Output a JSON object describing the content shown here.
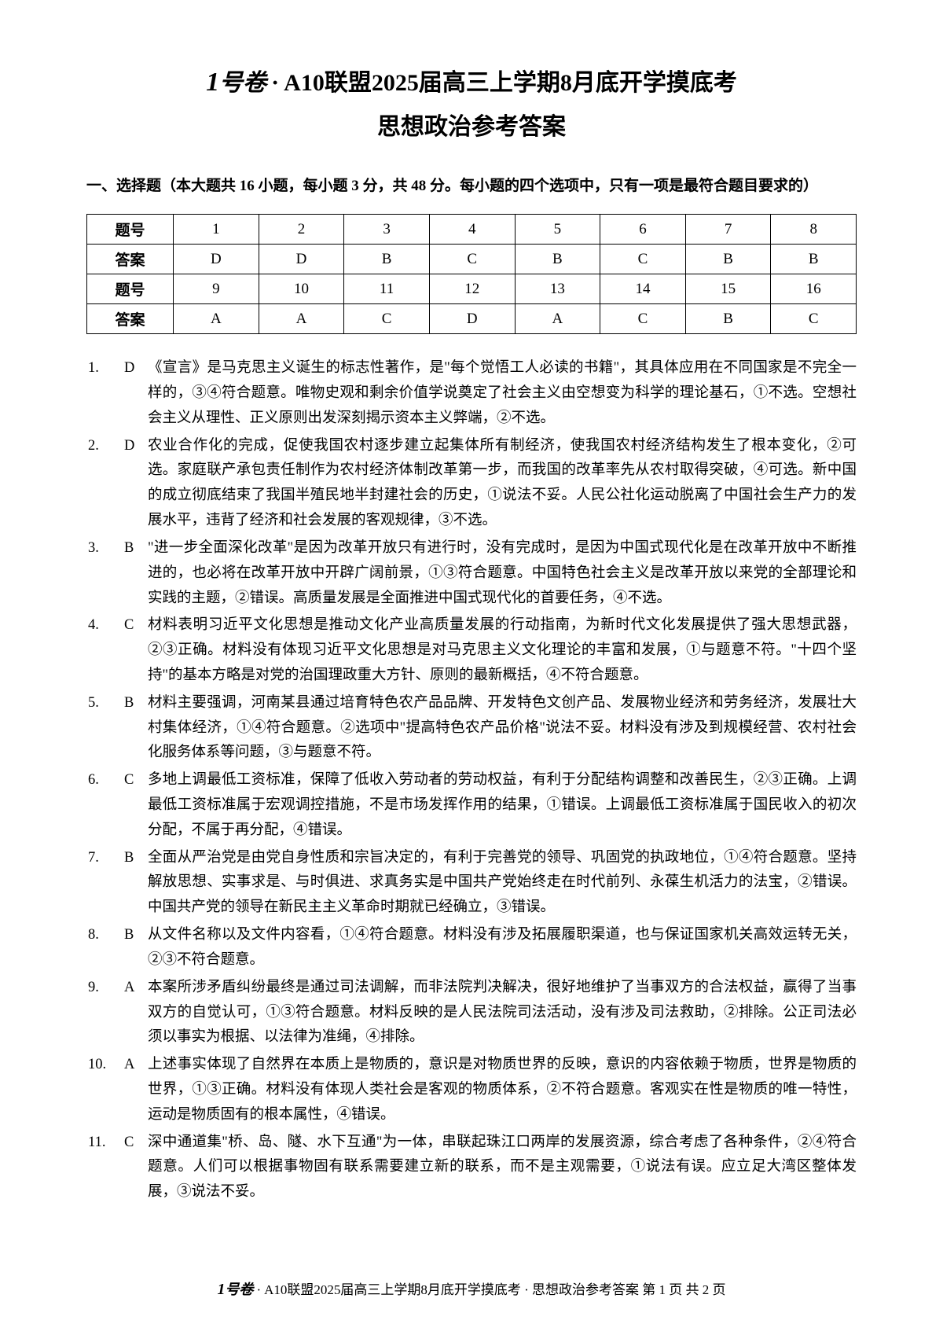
{
  "title": {
    "logo_num": "1",
    "logo_text": "号卷",
    "separator": "·",
    "main": "A10联盟2025届高三上学期8月底开学摸底考",
    "sub": "思想政治参考答案"
  },
  "section1_heading": "一、选择题（本大题共 16 小题，每小题 3 分，共 48 分。每小题的四个选项中，只有一项是最符合题目要求的）",
  "answer_table": {
    "row_label_q": "题号",
    "row_label_a": "答案",
    "rows": [
      {
        "nums": [
          "1",
          "2",
          "3",
          "4",
          "5",
          "6",
          "7",
          "8"
        ],
        "ans": [
          "D",
          "D",
          "B",
          "C",
          "B",
          "C",
          "B",
          "B"
        ]
      },
      {
        "nums": [
          "9",
          "10",
          "11",
          "12",
          "13",
          "14",
          "15",
          "16"
        ],
        "ans": [
          "A",
          "A",
          "C",
          "D",
          "A",
          "C",
          "B",
          "C"
        ]
      }
    ],
    "colors": {
      "border": "#000000",
      "text": "#000000",
      "bg": "#ffffff"
    }
  },
  "explanations": [
    {
      "n": "1.",
      "l": "D",
      "t": "《宣言》是马克思主义诞生的标志性著作，是\"每个觉悟工人必读的书籍\"，其具体应用在不同国家是不完全一样的，③④符合题意。唯物史观和剩余价值学说奠定了社会主义由空想变为科学的理论基石，①不选。空想社会主义从理性、正义原则出发深刻揭示资本主义弊端，②不选。"
    },
    {
      "n": "2.",
      "l": "D",
      "t": "农业合作化的完成，促使我国农村逐步建立起集体所有制经济，使我国农村经济结构发生了根本变化，②可选。家庭联产承包责任制作为农村经济体制改革第一步，而我国的改革率先从农村取得突破，④可选。新中国的成立彻底结束了我国半殖民地半封建社会的历史，①说法不妥。人民公社化运动脱离了中国社会生产力的发展水平，违背了经济和社会发展的客观规律，③不选。"
    },
    {
      "n": "3.",
      "l": "B",
      "t": "\"进一步全面深化改革\"是因为改革开放只有进行时，没有完成时，是因为中国式现代化是在改革开放中不断推进的，也必将在改革开放中开辟广阔前景，①③符合题意。中国特色社会主义是改革开放以来党的全部理论和实践的主题，②错误。高质量发展是全面推进中国式现代化的首要任务，④不选。"
    },
    {
      "n": "4.",
      "l": "C",
      "t": "材料表明习近平文化思想是推动文化产业高质量发展的行动指南，为新时代文化发展提供了强大思想武器，②③正确。材料没有体现习近平文化思想是对马克思主义文化理论的丰富和发展，①与题意不符。\"十四个坚持\"的基本方略是对党的治国理政重大方针、原则的最新概括，④不符合题意。"
    },
    {
      "n": "5.",
      "l": "B",
      "t": "材料主要强调，河南某县通过培育特色农产品品牌、开发特色文创产品、发展物业经济和劳务经济，发展壮大村集体经济，①④符合题意。②选项中\"提高特色农产品价格\"说法不妥。材料没有涉及到规模经营、农村社会化服务体系等问题，③与题意不符。"
    },
    {
      "n": "6.",
      "l": "C",
      "t": "多地上调最低工资标准，保障了低收入劳动者的劳动权益，有利于分配结构调整和改善民生，②③正确。上调最低工资标准属于宏观调控措施，不是市场发挥作用的结果，①错误。上调最低工资标准属于国民收入的初次分配，不属于再分配，④错误。"
    },
    {
      "n": "7.",
      "l": "B",
      "t": "全面从严治党是由党自身性质和宗旨决定的，有利于完善党的领导、巩固党的执政地位，①④符合题意。坚持解放思想、实事求是、与时俱进、求真务实是中国共产党始终走在时代前列、永葆生机活力的法宝，②错误。中国共产党的领导在新民主主义革命时期就已经确立，③错误。"
    },
    {
      "n": "8.",
      "l": "B",
      "t": "从文件名称以及文件内容看，①④符合题意。材料没有涉及拓展履职渠道，也与保证国家机关高效运转无关，②③不符合题意。"
    },
    {
      "n": "9.",
      "l": "A",
      "t": "本案所涉矛盾纠纷最终是通过司法调解，而非法院判决解决，很好地维护了当事双方的合法权益，赢得了当事双方的自觉认可，①③符合题意。材料反映的是人民法院司法活动，没有涉及司法救助，②排除。公正司法必须以事实为根据、以法律为准绳，④排除。"
    },
    {
      "n": "10.",
      "l": "A",
      "t": "上述事实体现了自然界在本质上是物质的，意识是对物质世界的反映，意识的内容依赖于物质，世界是物质的世界，①③正确。材料没有体现人类社会是客观的物质体系，②不符合题意。客观实在性是物质的唯一特性，运动是物质固有的根本属性，④错误。"
    },
    {
      "n": "11.",
      "l": "C",
      "t": "深中通道集\"桥、岛、隧、水下互通\"为一体，串联起珠江口两岸的发展资源，综合考虑了各种条件，②④符合题意。人们可以根据事物固有联系需要建立新的联系，而不是主观需要，①说法有误。应立足大湾区整体发展，③说法不妥。"
    }
  ],
  "footer": {
    "logo_num": "1",
    "logo_text": "号卷",
    "sep": "·",
    "text": "A10联盟2025届高三上学期8月底开学摸底考 · 思想政治参考答案  第 1 页  共 2 页"
  }
}
